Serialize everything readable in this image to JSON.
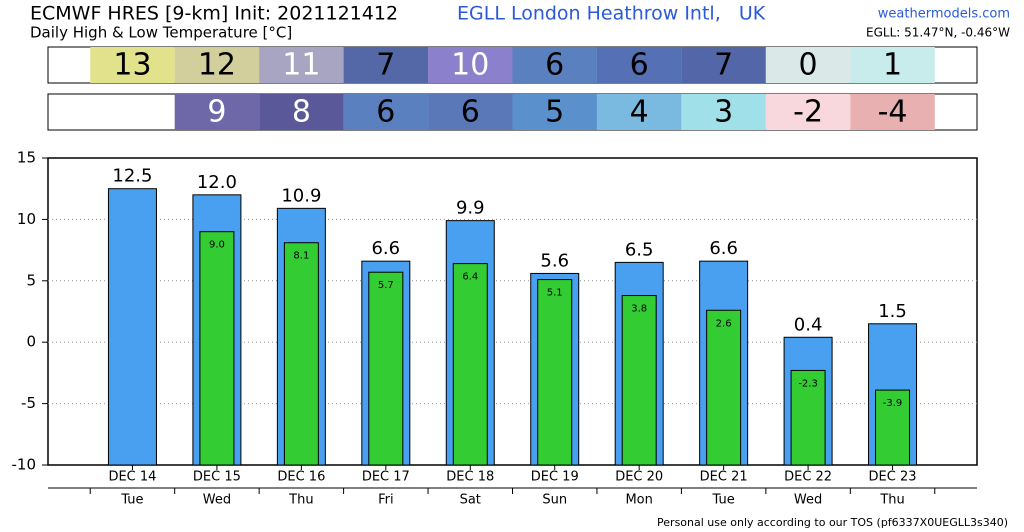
{
  "header": {
    "title": "ECMWF HRES [9-km] Init: 2021121412",
    "location": "EGLL London Heathrow Intl,   UK",
    "site": "weathermodels.com",
    "subtitle": "Daily High & Low Temperature [°C]",
    "coords": "EGLL: 51.47°N, -0.46°W"
  },
  "summary_rows": [
    {
      "values": [
        13,
        12,
        11,
        7,
        10,
        6,
        6,
        7,
        0,
        1
      ],
      "colors": [
        "#e2e28c",
        "#d3cf9c",
        "#a8a5c2",
        "#5468a8",
        "#8a80cc",
        "#5a80c0",
        "#5670b6",
        "#5366a8",
        "#dae8e8",
        "#c8ecec"
      ],
      "text_colors": [
        "#000000",
        "#000000",
        "#ffffff",
        "#000000",
        "#ffffff",
        "#000000",
        "#000000",
        "#000000",
        "#000000",
        "#000000"
      ]
    },
    {
      "values": [
        null,
        9,
        8,
        6,
        6,
        5,
        4,
        3,
        -2,
        -4
      ],
      "colors": [
        null,
        "#6e68a8",
        "#5a5898",
        "#5a80c0",
        "#5a78b8",
        "#5a90cc",
        "#7abae0",
        "#a0e0e8",
        "#f8d8dc",
        "#e8b0b0"
      ],
      "text_colors": [
        null,
        "#ffffff",
        "#ffffff",
        "#000000",
        "#000000",
        "#000000",
        "#000000",
        "#000000",
        "#000000",
        "#000000"
      ]
    }
  ],
  "chart_data": {
    "type": "bar",
    "categories": [
      "DEC 14",
      "DEC 15",
      "DEC 16",
      "DEC 17",
      "DEC 18",
      "DEC 19",
      "DEC 20",
      "DEC 21",
      "DEC 22",
      "DEC 23"
    ],
    "weekdays": [
      "Tue",
      "Wed",
      "Thu",
      "Fri",
      "Sat",
      "Sun",
      "Mon",
      "Tue",
      "Wed",
      "Thu"
    ],
    "series": [
      {
        "name": "High",
        "color": "#4aa0f0",
        "values": [
          12.5,
          12.0,
          10.9,
          6.6,
          9.9,
          5.6,
          6.5,
          6.6,
          0.4,
          1.5
        ],
        "value_labels": [
          "12.5",
          "12.0",
          "10.9",
          "6.6",
          "9.9",
          "5.6",
          "6.5",
          "6.6",
          "0.4",
          "1.5"
        ]
      },
      {
        "name": "Low",
        "color": "#33cc33",
        "values": [
          null,
          9.0,
          8.1,
          5.7,
          6.4,
          5.1,
          3.8,
          2.6,
          -2.3,
          -3.9
        ],
        "value_labels": [
          null,
          "9.0",
          "8.1",
          "5.7",
          "6.4",
          "5.1",
          "3.8",
          "2.6",
          "-2.3",
          "-3.9"
        ]
      }
    ],
    "ylim": [
      -10,
      15
    ],
    "yticks": [
      -10,
      -5,
      0,
      5,
      10,
      15
    ],
    "grid": true
  },
  "footer": "Personal use only according to our TOS (pf6337X0UEGLL3s340)"
}
